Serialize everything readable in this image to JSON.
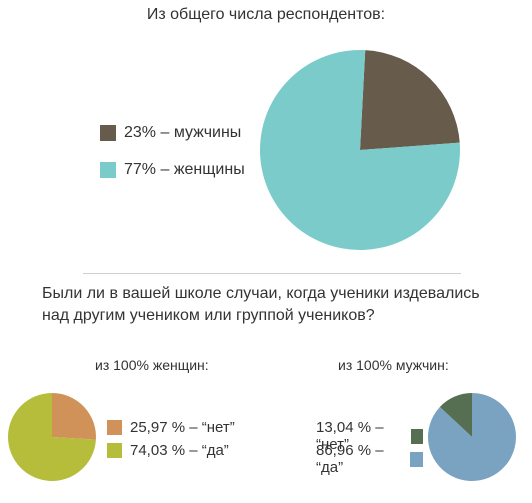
{
  "chart_data": [
    {
      "type": "pie",
      "title": "Из общего числа респондентов:",
      "slices": [
        {
          "label": "23% – мужчины",
          "value": 23,
          "color": "#675c4c"
        },
        {
          "label": "77% – женщины",
          "value": 77,
          "color": "#7bcbcb"
        }
      ],
      "legend_position": "left"
    },
    {
      "type": "pie",
      "title": "из 100% женщин:",
      "slices": [
        {
          "label": "25,97 % – “нет”",
          "value": 25.97,
          "color": "#d1925a"
        },
        {
          "label": "74,03 % – “да”",
          "value": 74.03,
          "color": "#b5bd3b"
        }
      ],
      "legend_position": "right"
    },
    {
      "type": "pie",
      "title": "из 100% мужчин:",
      "slices": [
        {
          "label": "13,04 % – “нет”",
          "value": 13.04,
          "color": "#566f53"
        },
        {
          "label": "86,96 % – “да”",
          "value": 86.96,
          "color": "#7aa3c2"
        }
      ],
      "legend_position": "left"
    }
  ],
  "question": {
    "line1": "Были ли в вашей школе случаи, когда ученики издевались",
    "line2": "над другим учеником или группой учеников?"
  }
}
